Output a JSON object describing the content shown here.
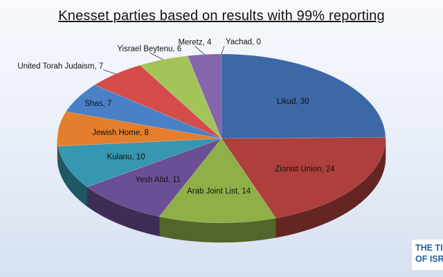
{
  "chart_data": {
    "type": "pie",
    "title": "Knesset parties based on results with 99% reporting",
    "slices": [
      {
        "label": "Likud",
        "value": 30,
        "color": "#3c68a6",
        "display": "Likud, 30"
      },
      {
        "label": "Zionist Union",
        "value": 24,
        "color": "#ae3f3c",
        "display": "Zionist Union, 24"
      },
      {
        "label": "Arab Joint List",
        "value": 14,
        "color": "#8fb046",
        "display": "Arab Joint List, 14"
      },
      {
        "label": "Yesh Atid",
        "value": 11,
        "color": "#6b4f94",
        "display": "Yesh Atid, 11"
      },
      {
        "label": "Kulanu",
        "value": 10,
        "color": "#3796b0",
        "display": "Kulanu, 10"
      },
      {
        "label": "Jewish Home",
        "value": 8,
        "color": "#e57e2c",
        "display": "Jewish Home, 8"
      },
      {
        "label": "Shas",
        "value": 7,
        "color": "#4a80c6",
        "display": "Shas, 7"
      },
      {
        "label": "United Torah Judaism",
        "value": 7,
        "color": "#d44c4a",
        "display": "United Torah Judaism, 7"
      },
      {
        "label": "Yisrael Beytenu",
        "value": 6,
        "color": "#a3c459",
        "display": "Yisrael Beytenu, 6"
      },
      {
        "label": "Meretz",
        "value": 4,
        "color": "#8566ad",
        "display": "Meretz, 4"
      },
      {
        "label": "Yachad",
        "value": 0,
        "color": "#3aa2c2",
        "display": "Yachad, 0"
      }
    ]
  },
  "watermark": {
    "text": "THE TIMES OF ISRAEL",
    "color": "#1f5fa8"
  }
}
